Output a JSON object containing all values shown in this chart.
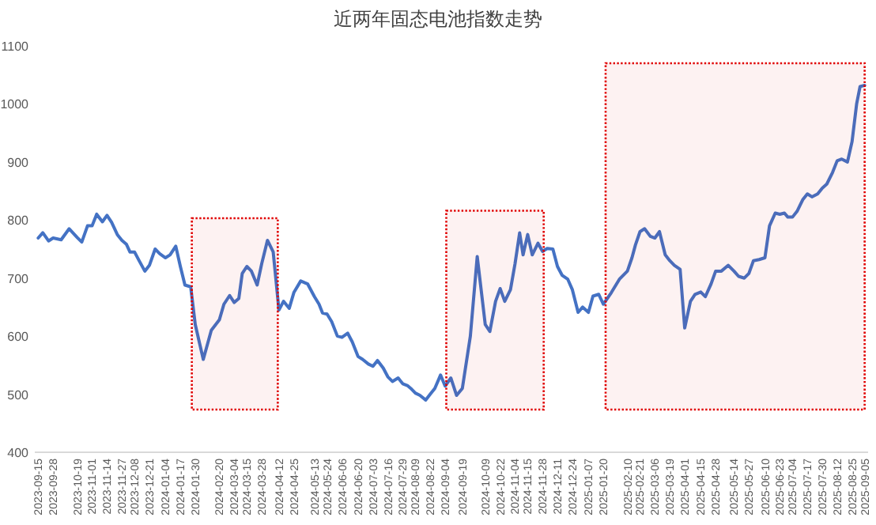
{
  "chart_data": {
    "type": "line",
    "title": "近两年固态电池指数走势",
    "x": [
      "2023-09-15",
      "2023-09-19",
      "2023-09-24",
      "2023-09-28",
      "2023-10-05",
      "2023-10-12",
      "2023-10-19",
      "2023-10-23",
      "2023-10-28",
      "2023-11-01",
      "2023-11-05",
      "2023-11-10",
      "2023-11-14",
      "2023-11-18",
      "2023-11-23",
      "2023-11-27",
      "2023-12-01",
      "2023-12-04",
      "2023-12-08",
      "2023-12-12",
      "2023-12-17",
      "2023-12-21",
      "2023-12-26",
      "2023-12-30",
      "2024-01-04",
      "2024-01-08",
      "2024-01-13",
      "2024-01-17",
      "2024-01-21",
      "2024-01-26",
      "2024-01-30",
      "2024-02-06",
      "2024-02-13",
      "2024-02-20",
      "2024-02-24",
      "2024-02-29",
      "2024-03-04",
      "2024-03-08",
      "2024-03-11",
      "2024-03-15",
      "2024-03-19",
      "2024-03-24",
      "2024-03-28",
      "2024-04-02",
      "2024-04-07",
      "2024-04-12",
      "2024-04-16",
      "2024-04-21",
      "2024-04-25",
      "2024-05-01",
      "2024-05-07",
      "2024-05-13",
      "2024-05-17",
      "2024-05-20",
      "2024-05-24",
      "2024-05-28",
      "2024-06-02",
      "2024-06-06",
      "2024-06-11",
      "2024-06-15",
      "2024-06-20",
      "2024-06-24",
      "2024-06-29",
      "2024-07-03",
      "2024-07-07",
      "2024-07-12",
      "2024-07-16",
      "2024-07-20",
      "2024-07-25",
      "2024-07-29",
      "2024-08-02",
      "2024-08-05",
      "2024-08-09",
      "2024-08-13",
      "2024-08-18",
      "2024-08-22",
      "2024-08-26",
      "2024-08-31",
      "2024-09-04",
      "2024-09-09",
      "2024-09-14",
      "2024-09-19",
      "2024-09-26",
      "2024-10-02",
      "2024-10-09",
      "2024-10-13",
      "2024-10-18",
      "2024-10-22",
      "2024-10-26",
      "2024-10-31",
      "2024-11-04",
      "2024-11-08",
      "2024-11-11",
      "2024-11-15",
      "2024-11-19",
      "2024-11-24",
      "2024-11-28",
      "2024-12-02",
      "2024-12-07",
      "2024-12-11",
      "2024-12-15",
      "2024-12-20",
      "2024-12-24",
      "2024-12-29",
      "2025-01-02",
      "2025-01-07",
      "2025-01-11",
      "2025-01-16",
      "2025-01-20",
      "2025-01-27",
      "2025-02-03",
      "2025-02-10",
      "2025-02-14",
      "2025-02-17",
      "2025-02-21",
      "2025-02-25",
      "2025-03-02",
      "2025-03-06",
      "2025-03-10",
      "2025-03-15",
      "2025-03-19",
      "2025-03-23",
      "2025-03-28",
      "2025-04-01",
      "2025-04-06",
      "2025-04-10",
      "2025-04-15",
      "2025-04-19",
      "2025-04-24",
      "2025-04-28",
      "2025-05-03",
      "2025-05-09",
      "2025-05-14",
      "2025-05-18",
      "2025-05-23",
      "2025-05-27",
      "2025-05-31",
      "2025-06-05",
      "2025-06-10",
      "2025-06-14",
      "2025-06-19",
      "2025-06-23",
      "2025-06-27",
      "2025-06-30",
      "2025-07-04",
      "2025-07-08",
      "2025-07-13",
      "2025-07-17",
      "2025-07-21",
      "2025-07-26",
      "2025-07-30",
      "2025-08-03",
      "2025-08-08",
      "2025-08-12",
      "2025-08-16",
      "2025-08-21",
      "2025-08-25",
      "2025-08-29",
      "2025-09-01",
      "2025-09-05"
    ],
    "series": [
      {
        "color": "#4472c4",
        "values": [
          769,
          778,
          764,
          769,
          766,
          785,
          770,
          762,
          790,
          790,
          810,
          797,
          808,
          796,
          775,
          765,
          758,
          745,
          745,
          730,
          712,
          722,
          750,
          742,
          735,
          740,
          755,
          720,
          688,
          685,
          620,
          560,
          610,
          628,
          655,
          670,
          658,
          665,
          708,
          720,
          712,
          688,
          725,
          765,
          745,
          645,
          660,
          648,
          675,
          695,
          690,
          668,
          655,
          640,
          638,
          625,
          600,
          598,
          605,
          590,
          565,
          560,
          552,
          548,
          558,
          545,
          530,
          522,
          528,
          518,
          515,
          510,
          502,
          498,
          490,
          500,
          510,
          533,
          514,
          528,
          498,
          510,
          600,
          737,
          620,
          608,
          660,
          682,
          660,
          680,
          725,
          778,
          740,
          775,
          740,
          760,
          746,
          751,
          750,
          720,
          705,
          698,
          680,
          641,
          650,
          641,
          669,
          672,
          655,
          675,
          698,
          712,
          735,
          757,
          780,
          785,
          772,
          769,
          780,
          740,
          730,
          722,
          715,
          614,
          660,
          672,
          676,
          668,
          690,
          712,
          712,
          722,
          712,
          703,
          700,
          708,
          730,
          732,
          735,
          790,
          812,
          810,
          812,
          805,
          805,
          815,
          835,
          845,
          840,
          845,
          855,
          862,
          882,
          902,
          905,
          900,
          935,
          1000,
          1030,
          1032
        ]
      }
    ],
    "xlim": [
      "2023-09-12",
      "2025-09-08"
    ],
    "xticks": [
      "2023-09-15",
      "2023-09-28",
      "2023-10-19",
      "2023-11-01",
      "2023-11-14",
      "2023-11-27",
      "2023-12-08",
      "2023-12-21",
      "2024-01-04",
      "2024-01-17",
      "2024-01-30",
      "2024-02-20",
      "2024-03-04",
      "2024-03-15",
      "2024-03-28",
      "2024-04-12",
      "2024-04-25",
      "2024-05-13",
      "2024-05-24",
      "2024-06-06",
      "2024-06-20",
      "2024-07-03",
      "2024-07-16",
      "2024-07-29",
      "2024-08-09",
      "2024-08-22",
      "2024-09-04",
      "2024-09-19",
      "2024-10-09",
      "2024-10-22",
      "2024-11-04",
      "2024-11-15",
      "2024-11-28",
      "2024-12-11",
      "2024-12-24",
      "2025-01-07",
      "2025-01-20",
      "2025-02-10",
      "2025-02-21",
      "2025-03-06",
      "2025-03-19",
      "2025-04-01",
      "2025-04-15",
      "2025-04-28",
      "2025-05-14",
      "2025-05-27",
      "2025-06-10",
      "2025-06-23",
      "2025-07-04",
      "2025-07-17",
      "2025-07-30",
      "2025-08-12",
      "2025-08-25",
      "2025-09-05"
    ],
    "ylim": [
      400,
      1100
    ],
    "yticks": [
      400,
      500,
      600,
      700,
      800,
      900,
      1000,
      1100
    ],
    "bands": [
      {
        "axis": "x",
        "from": "2024-01-27",
        "to": "2024-04-11",
        "color": "#e00000"
      },
      {
        "axis": "x",
        "from": "2024-09-05",
        "to": "2024-11-29",
        "color": "#e00000"
      },
      {
        "axis": "x",
        "from": "2025-01-22",
        "to": "2025-09-05",
        "color": "#e00000"
      }
    ]
  }
}
